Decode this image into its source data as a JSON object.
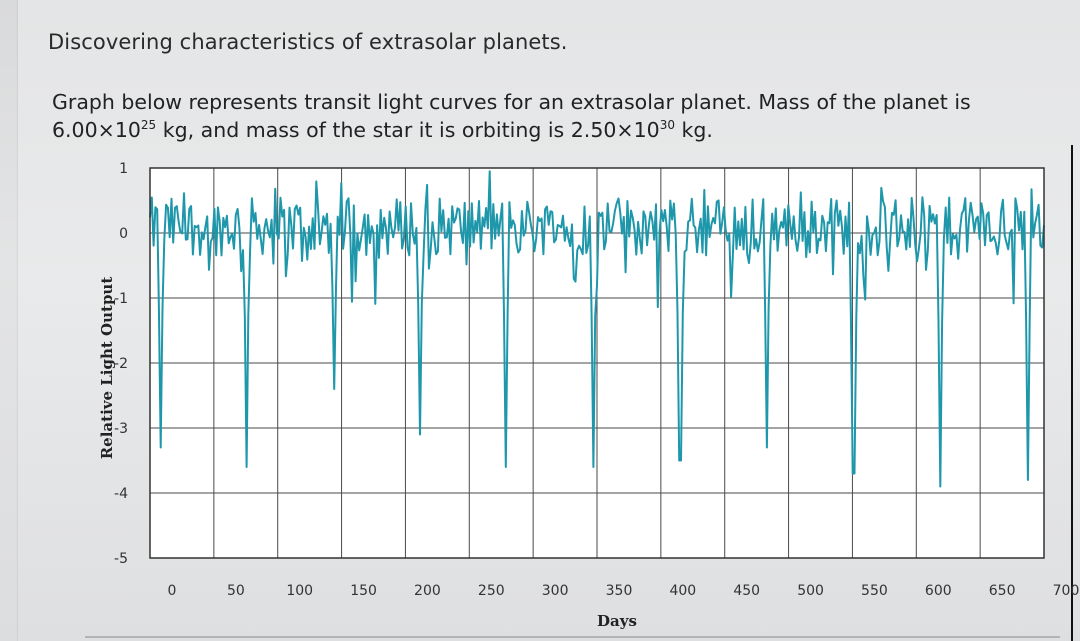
{
  "text": {
    "heading": "Discovering characteristics of extrasolar planets.",
    "desc_line1": "Graph below represents transit light curves for an extrasolar planet. Mass of the planet is",
    "desc_mass_planet_mantissa": "6.00×10",
    "desc_mass_planet_exp": "25",
    "desc_mid": " kg, and mass of the star it is orbiting is ",
    "desc_mass_star_mantissa": "2.50×10",
    "desc_mass_star_exp": "30",
    "desc_end": " kg."
  },
  "colors": {
    "series": "#1f97ab",
    "grid": "#4a4a4a",
    "background": "#ffffff"
  },
  "chart_data": {
    "type": "line",
    "title": "",
    "xlabel": "Days",
    "ylabel": "Relative Light Output",
    "xlim": [
      0,
      700
    ],
    "ylim": [
      -5,
      1
    ],
    "xticks": [
      "0",
      "50",
      "100",
      "150",
      "200",
      "250",
      "300",
      "350",
      "400",
      "450",
      "500",
      "550",
      "600",
      "650",
      "700"
    ],
    "yticks": [
      "1",
      "0",
      "-1",
      "-2",
      "-3",
      "-4",
      "-5"
    ],
    "grid": true,
    "legend": "none",
    "series": [
      {
        "noise_baseline": 0.1,
        "noise_amplitude": 0.45,
        "transit_days": [
          8,
          76,
          144,
          211,
          279,
          347,
          415,
          483,
          551,
          619,
          687
        ],
        "transit_depths": [
          -3.3,
          -3.6,
          -2.4,
          -3.1,
          -3.6,
          -3.6,
          -3.5,
          -3.3,
          -3.7,
          -3.9,
          -3.8
        ]
      }
    ]
  }
}
